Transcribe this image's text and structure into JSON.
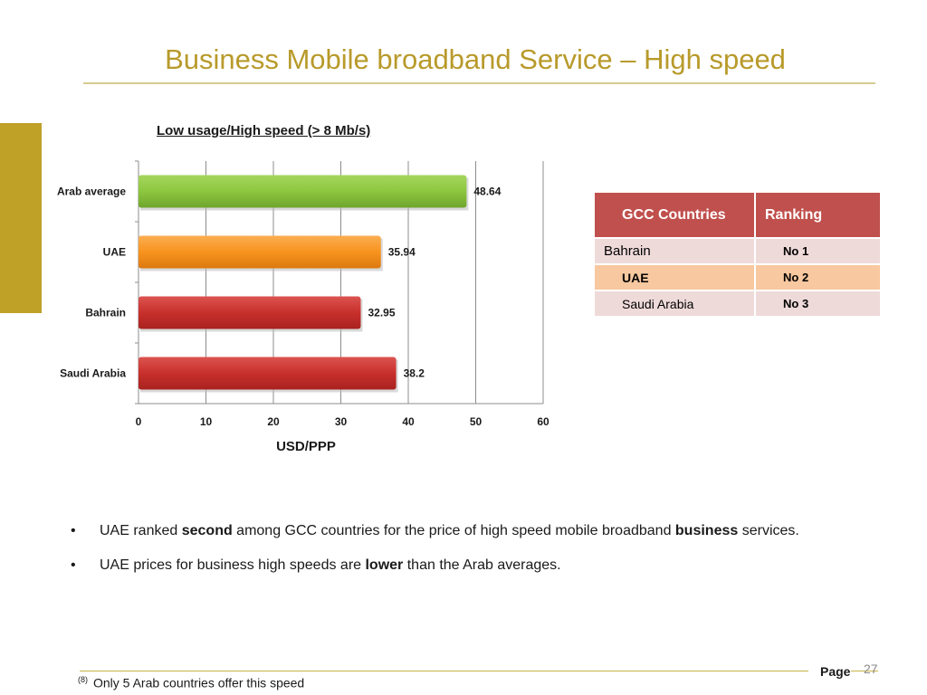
{
  "page": {
    "title": "Business Mobile broadband Service – High speed",
    "page_label": "Page",
    "page_number": "27",
    "footnote_marker": "(8)",
    "footnote_text": "Only 5 Arab countries offer this speed"
  },
  "colors": {
    "title": "#B89A2A",
    "accent_bar": "#BFA128",
    "table_header": "#C0504D",
    "row_highlight": "#F8C8A0",
    "row_default": "#EFDADA"
  },
  "chart_data": {
    "type": "bar",
    "orientation": "horizontal",
    "title": "Low usage/High speed (> 8 Mb/s)",
    "xlabel": "USD/PPP",
    "ylabel": "",
    "xlim": [
      0,
      60
    ],
    "xticks": [
      0,
      10,
      20,
      30,
      40,
      50,
      60
    ],
    "grid": "vertical",
    "categories": [
      "Arab average",
      "UAE",
      "Bahrain",
      "Saudi Arabia"
    ],
    "values": [
      48.64,
      35.94,
      32.95,
      38.2
    ],
    "value_labels": [
      "48.64",
      "35.94",
      "32.95",
      "38.2"
    ],
    "bar_colors": [
      "#8DC63F",
      "#F7931E",
      "#C8302C",
      "#C8302C"
    ]
  },
  "table": {
    "headers": [
      "GCC Countries",
      "Ranking"
    ],
    "rows": [
      {
        "country": "Bahrain",
        "rank": "No 1"
      },
      {
        "country": "UAE",
        "rank": "No 2"
      },
      {
        "country": "Saudi Arabia",
        "rank": "No 3"
      }
    ]
  },
  "bullets": [
    {
      "marker": "•",
      "parts": [
        {
          "text": "UAE ranked ",
          "bold": false
        },
        {
          "text": "second",
          "bold": true
        },
        {
          "text": " among GCC countries for the price of high speed mobile broadband ",
          "bold": false
        },
        {
          "text": "business",
          "bold": true
        },
        {
          "text": " services.",
          "bold": false
        }
      ]
    },
    {
      "marker": "•",
      "parts": [
        {
          "text": "UAE prices for business high speeds are ",
          "bold": false
        },
        {
          "text": "lower",
          "bold": true
        },
        {
          "text": " than the Arab averages.",
          "bold": false
        }
      ]
    }
  ]
}
